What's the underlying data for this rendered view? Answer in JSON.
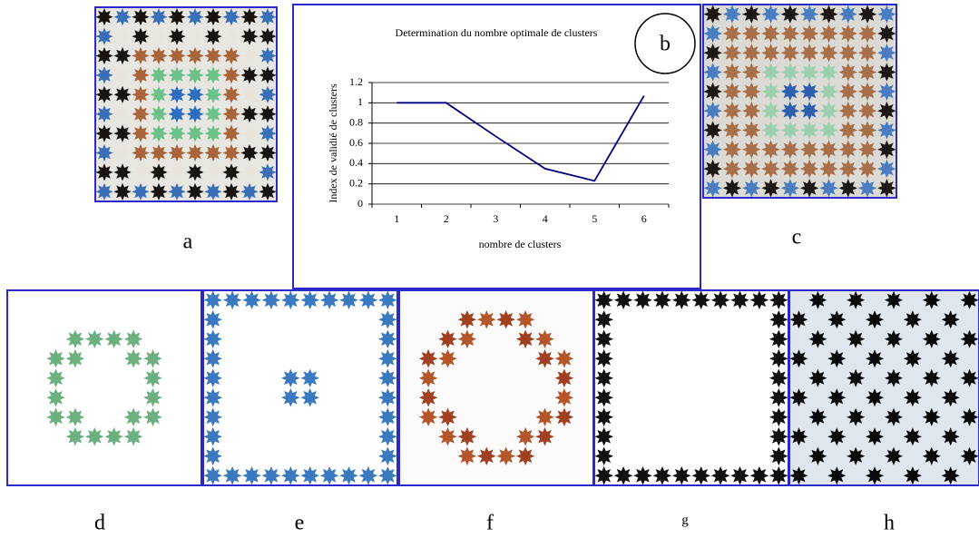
{
  "chart_data": {
    "type": "line",
    "title": "Determination du nombre optimale de  clusters",
    "x_label": "nombre de clusters",
    "y_label": "Index de validié de clusters",
    "annotation": "b",
    "categories": [
      "1",
      "2",
      "3",
      "4",
      "5",
      "6"
    ],
    "values": [
      1,
      1,
      0.67,
      0.35,
      0.23,
      1.07
    ],
    "color": "#000080",
    "ylim": [
      0,
      1.2
    ],
    "yticks": [
      0,
      0.2,
      0.4,
      0.6,
      0.8,
      1,
      1.2
    ],
    "grid": true
  },
  "panels": {
    "labels": [
      "a",
      "c",
      "d",
      "e",
      "f",
      "g",
      "h"
    ]
  }
}
